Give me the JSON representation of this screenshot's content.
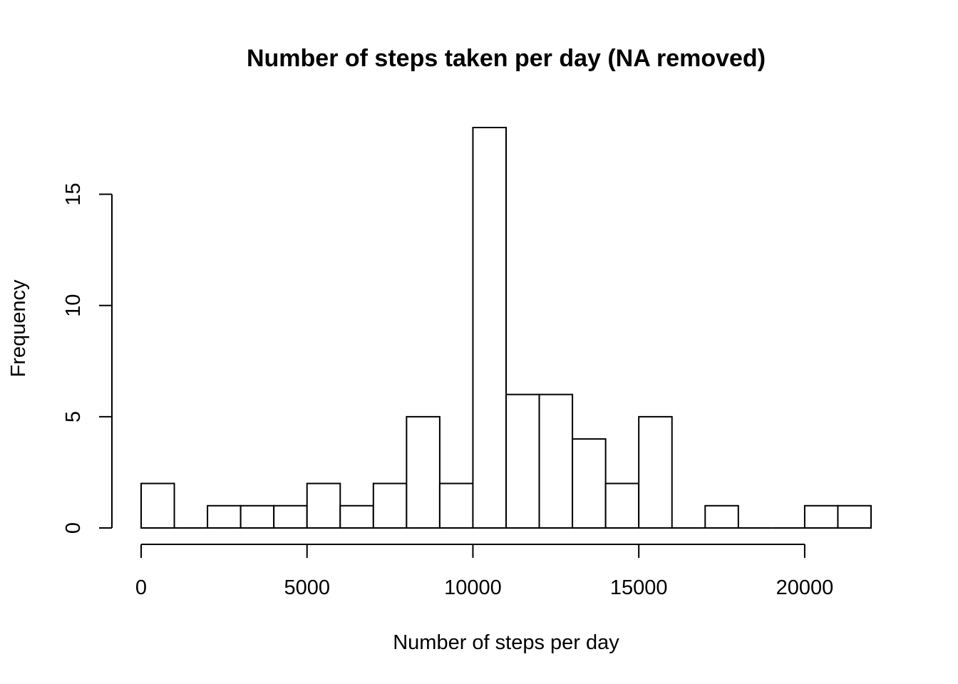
{
  "chart_data": {
    "type": "bar",
    "title": "Number of steps taken per day (NA removed)",
    "xlabel": "Number of steps per day",
    "ylabel": "Frequency",
    "bin_width": 1000,
    "bin_starts": [
      0,
      1000,
      2000,
      3000,
      4000,
      5000,
      6000,
      7000,
      8000,
      9000,
      10000,
      11000,
      12000,
      13000,
      14000,
      15000,
      16000,
      17000,
      18000,
      19000,
      20000,
      21000
    ],
    "values": [
      2,
      0,
      1,
      1,
      1,
      2,
      1,
      2,
      5,
      2,
      18,
      6,
      6,
      4,
      2,
      5,
      0,
      1,
      0,
      0,
      1,
      1
    ],
    "xlim": [
      0,
      22000
    ],
    "ylim": [
      0,
      18
    ],
    "x_ticks": [
      0,
      5000,
      10000,
      15000,
      20000
    ],
    "x_tick_labels": [
      "0",
      "5000",
      "10000",
      "15000",
      "20000"
    ],
    "y_ticks": [
      0,
      5,
      10,
      15
    ],
    "y_tick_labels": [
      "0",
      "5",
      "10",
      "15"
    ],
    "grid": false,
    "legend": "none",
    "bar_fill": "#ffffff",
    "bar_stroke": "#000000"
  }
}
